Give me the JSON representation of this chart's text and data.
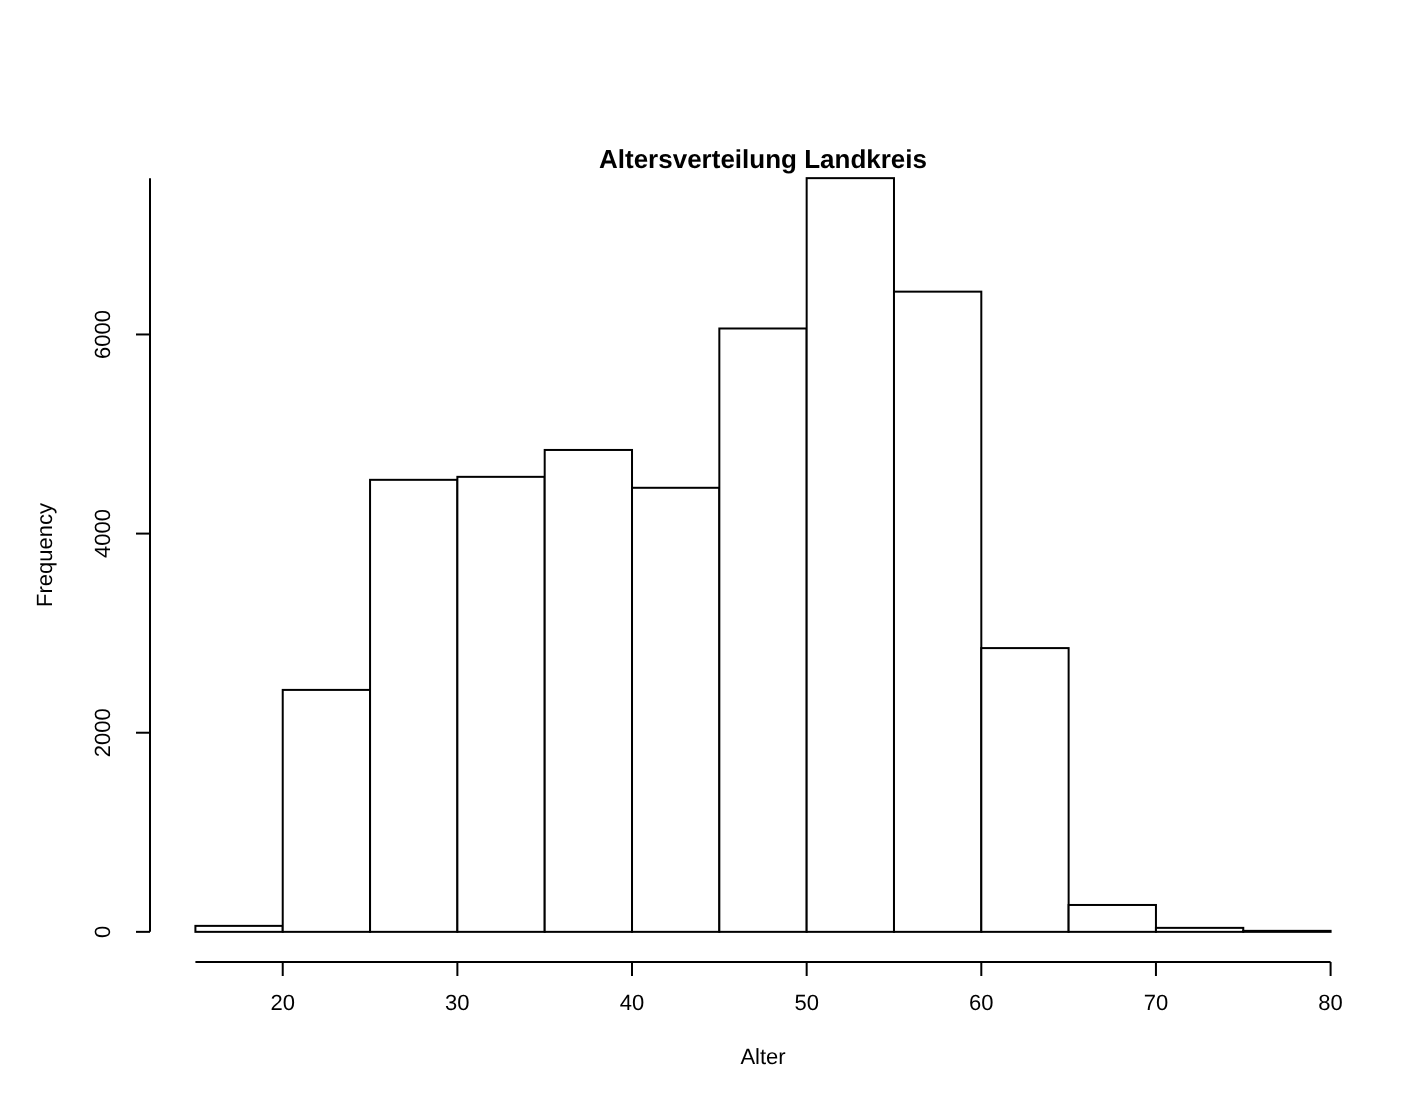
{
  "chart_data": {
    "type": "histogram",
    "title": "Altersverteilung Landkreis",
    "xlabel": "Alter",
    "ylabel": "Frequency",
    "bins": [
      15,
      20,
      25,
      30,
      35,
      40,
      45,
      50,
      55,
      60,
      65,
      70,
      75,
      80
    ],
    "values": [
      60,
      2430,
      4540,
      4570,
      4840,
      4460,
      6060,
      7570,
      6430,
      2850,
      270,
      40,
      10
    ],
    "color": "#ffffff",
    "xlim": [
      15,
      80
    ],
    "ylim": [
      0,
      7570
    ],
    "xticks": [
      20,
      30,
      40,
      50,
      60,
      70,
      80
    ],
    "yticks": [
      0,
      2000,
      4000,
      6000
    ]
  }
}
